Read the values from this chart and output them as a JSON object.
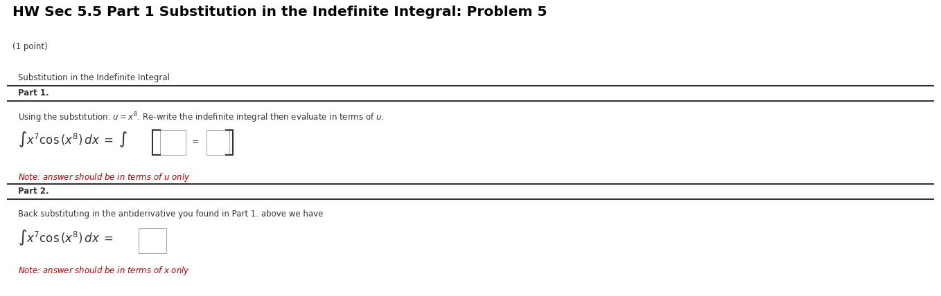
{
  "title": "HW Sec 5.5 Part 1 Substitution in the Indefinite Integral: Problem 5",
  "subtitle": "(1 point)",
  "page_bg": "#ffffff",
  "box_bg": "#f0f0f0",
  "box_border": "#cccccc",
  "section_header": "Substitution in the Indefinite Integral",
  "part1_label": "Part 1.",
  "part1_instruction": "Using the substitution: $u = x^8$. Re-write the indefinite integral then evaluate in terms of $u$.",
  "part1_note": "Note: answer should be in terms of $u$ only",
  "part2_label": "Part 2.",
  "part2_instruction": "Back substituting in the antiderivative you found in Part 1. above we have",
  "part2_note": "Note: answer should be in terms of $x$ only",
  "line_color": "#333333",
  "text_color": "#333333",
  "note_color": "#aa0000",
  "title_color": "#000000",
  "subtitle_color": "#333333",
  "input_box_color": "#ffffff",
  "input_box_border": "#aaaaaa"
}
